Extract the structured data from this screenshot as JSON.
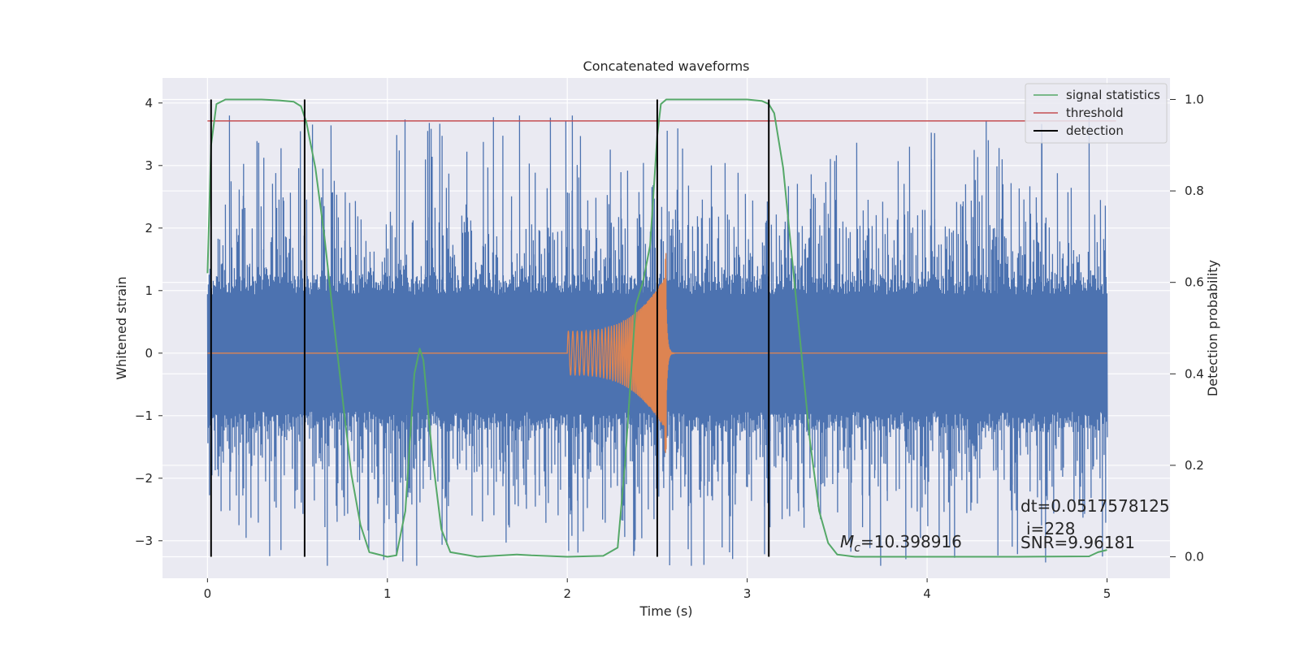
{
  "chart_data": {
    "type": "line",
    "title": "Concatenated waveforms",
    "xlabel": "Time (s)",
    "ylabel": "Whitened strain",
    "y2label": "Detection probability",
    "xlim": [
      -0.25,
      5.35
    ],
    "ylim": [
      -3.6,
      4.4
    ],
    "y2lim": [
      -0.047,
      1.047
    ],
    "x_ticks": [
      0,
      1,
      2,
      3,
      4,
      5
    ],
    "x_tick_labels": [
      "0",
      "1",
      "2",
      "3",
      "4",
      "5"
    ],
    "y_ticks": [
      -3,
      -2,
      -1,
      0,
      1,
      2,
      3,
      4
    ],
    "y_tick_labels": [
      "−3",
      "−2",
      "−1",
      "0",
      "1",
      "2",
      "3",
      "4"
    ],
    "y2_ticks": [
      0.0,
      0.2,
      0.4,
      0.6,
      0.8,
      1.0
    ],
    "y2_tick_labels": [
      "0.0",
      "0.2",
      "0.4",
      "0.6",
      "0.8",
      "1.0"
    ],
    "grid": true,
    "legend_position": "top-right",
    "legend": [
      "signal statistics",
      "threshold",
      "detection"
    ],
    "colors": {
      "noise": "#4c72b0",
      "waveform": "#dd8452",
      "signal_statistics": "#55a868",
      "threshold": "#c44e52",
      "detection": "#000000",
      "plot_bg": "#eaeaf2",
      "grid": "#ffffff"
    },
    "noise": {
      "axis": "left",
      "x_range": [
        0,
        5
      ],
      "typical_envelope": [
        -1.1,
        1.1
      ],
      "peak_range": [
        -3.4,
        3.8
      ]
    },
    "waveform": {
      "axis": "left",
      "chirp_start": 2.0,
      "merger": 2.55,
      "start_amplitude": 0.35,
      "peak_amplitude": 1.25,
      "min_value": -1.8
    },
    "signal_statistics": {
      "axis": "right",
      "x": [
        0,
        0.02,
        0.05,
        0.1,
        0.2,
        0.3,
        0.4,
        0.48,
        0.52,
        0.55,
        0.6,
        0.65,
        0.7,
        0.75,
        0.8,
        0.85,
        0.9,
        1.0,
        1.05,
        1.1,
        1.15,
        1.18,
        1.2,
        1.25,
        1.3,
        1.35,
        1.5,
        1.72,
        1.8,
        2.0,
        2.2,
        2.28,
        2.32,
        2.38,
        2.42,
        2.46,
        2.5,
        2.52,
        2.55,
        2.6,
        2.8,
        3.0,
        3.08,
        3.12,
        3.15,
        3.2,
        3.25,
        3.3,
        3.35,
        3.4,
        3.45,
        3.5,
        3.6,
        4.0,
        4.5,
        4.9,
        4.95,
        5.0
      ],
      "y": [
        0.62,
        0.9,
        0.99,
        1.0,
        1.0,
        1.0,
        0.998,
        0.995,
        0.985,
        0.95,
        0.85,
        0.7,
        0.52,
        0.35,
        0.18,
        0.07,
        0.01,
        0.0,
        0.003,
        0.1,
        0.4,
        0.455,
        0.43,
        0.22,
        0.06,
        0.01,
        0.0,
        0.005,
        0.003,
        0.0,
        0.002,
        0.02,
        0.2,
        0.55,
        0.6,
        0.68,
        0.92,
        0.99,
        1.0,
        1.0,
        1.0,
        1.0,
        0.997,
        0.99,
        0.97,
        0.85,
        0.65,
        0.45,
        0.25,
        0.1,
        0.03,
        0.005,
        0.0,
        0.0,
        0.0,
        0.001,
        0.01,
        0.015
      ]
    },
    "threshold": {
      "axis": "right",
      "value": 0.953,
      "x_range": [
        0,
        5.05
      ]
    },
    "detections": [
      0.02,
      0.54,
      2.5,
      3.12
    ],
    "annotations": {
      "mc": "=10.398916",
      "mc_symbol": "M",
      "mc_sub": "c",
      "dt": "dt=0.0517578125",
      "i": "i=228",
      "snr": "SNR=9.96181"
    }
  }
}
